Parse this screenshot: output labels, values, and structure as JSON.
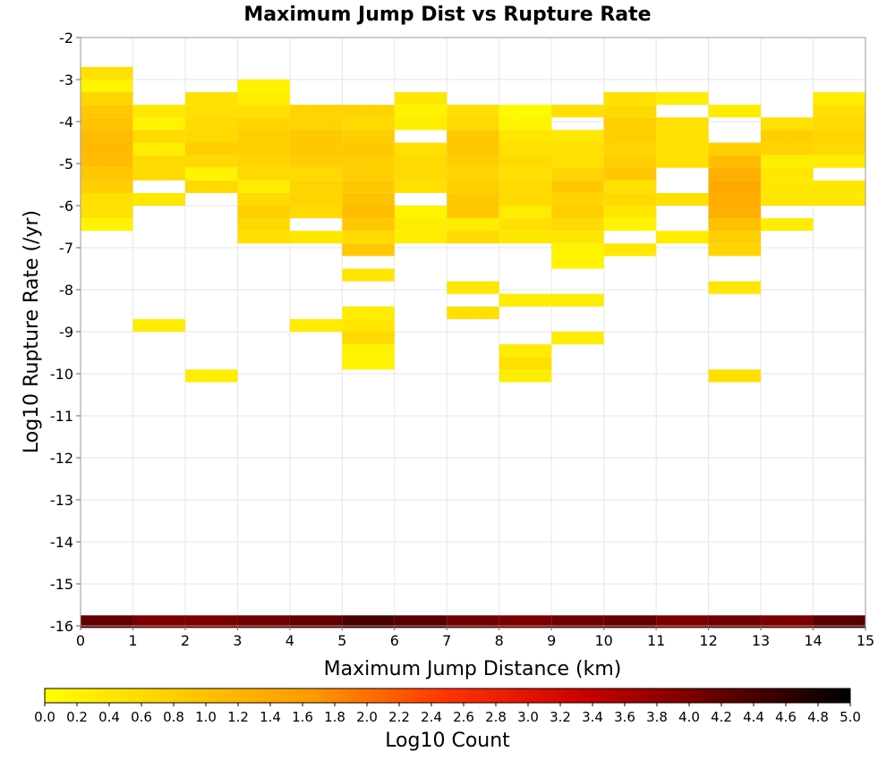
{
  "chart_data": {
    "type": "heatmap",
    "title": "Maximum Jump Dist vs Rupture Rate",
    "xlabel": "Maximum Jump Distance (km)",
    "ylabel": "Log10 Rupture Rate (/yr)",
    "xlim": [
      0,
      15
    ],
    "ylim": [
      -16,
      -2
    ],
    "x_ticks": [
      "0",
      "1",
      "2",
      "3",
      "4",
      "5",
      "6",
      "7",
      "8",
      "9",
      "10",
      "11",
      "12",
      "13",
      "14",
      "15"
    ],
    "y_ticks": [
      "-2",
      "-3",
      "-4",
      "-5",
      "-6",
      "-7",
      "-8",
      "-9",
      "-10",
      "-11",
      "-12",
      "-13",
      "-14",
      "-15",
      "-16"
    ],
    "grid": true,
    "x_bin_width": 1,
    "y_bin_height": 0.3,
    "colorbar": {
      "label": "Log10 Count",
      "range": [
        0,
        5
      ],
      "ticks": [
        "0.0",
        "0.2",
        "0.4",
        "0.6",
        "0.8",
        "1.0",
        "1.2",
        "1.4",
        "1.6",
        "1.8",
        "2.0",
        "2.2",
        "2.4",
        "2.6",
        "2.8",
        "3.0",
        "3.2",
        "3.4",
        "3.6",
        "3.8",
        "4.0",
        "4.2",
        "4.4",
        "4.6",
        "4.8",
        "5.0"
      ],
      "colors": [
        "#ffff00",
        "#ffcc00",
        "#ff9900",
        "#ff3300",
        "#cc0000",
        "#660000",
        "#000000"
      ]
    },
    "columns": [
      {
        "x": 0.5,
        "cells": [
          [
            -2.85,
            0.5
          ],
          [
            -3.15,
            0.2
          ],
          [
            -3.45,
            0.7
          ],
          [
            -3.75,
            0.9
          ],
          [
            -4.05,
            1.0
          ],
          [
            -4.35,
            1.1
          ],
          [
            -4.65,
            1.15
          ],
          [
            -4.95,
            1.1
          ],
          [
            -5.25,
            0.95
          ],
          [
            -5.55,
            0.8
          ],
          [
            -5.85,
            0.5
          ],
          [
            -6.15,
            0.5
          ],
          [
            -6.45,
            0.2
          ],
          [
            -15.9,
            4.2
          ]
        ]
      },
      {
        "x": 1.5,
        "cells": [
          [
            -3.75,
            0.4
          ],
          [
            -4.05,
            0.2
          ],
          [
            -4.35,
            0.6
          ],
          [
            -4.65,
            0.3
          ],
          [
            -4.95,
            0.6
          ],
          [
            -5.25,
            0.6
          ],
          [
            -5.85,
            0.4
          ],
          [
            -8.85,
            0.3
          ],
          [
            -15.9,
            4.0
          ]
        ]
      },
      {
        "x": 2.5,
        "cells": [
          [
            -3.45,
            0.5
          ],
          [
            -3.75,
            0.5
          ],
          [
            -4.05,
            0.6
          ],
          [
            -4.35,
            0.6
          ],
          [
            -4.65,
            0.8
          ],
          [
            -4.95,
            0.6
          ],
          [
            -5.25,
            0.2
          ],
          [
            -5.55,
            0.6
          ],
          [
            -10.05,
            0.3
          ],
          [
            -15.9,
            4.0
          ]
        ]
      },
      {
        "x": 3.5,
        "cells": [
          [
            -3.15,
            0.2
          ],
          [
            -3.45,
            0.3
          ],
          [
            -3.75,
            0.5
          ],
          [
            -4.05,
            0.7
          ],
          [
            -4.35,
            0.8
          ],
          [
            -4.65,
            0.8
          ],
          [
            -4.95,
            0.7
          ],
          [
            -5.25,
            0.6
          ],
          [
            -5.55,
            0.3
          ],
          [
            -5.85,
            0.6
          ],
          [
            -6.15,
            0.8
          ],
          [
            -6.45,
            0.6
          ],
          [
            -6.75,
            0.5
          ],
          [
            -15.9,
            4.1
          ]
        ]
      },
      {
        "x": 4.5,
        "cells": [
          [
            -3.75,
            0.7
          ],
          [
            -4.05,
            0.7
          ],
          [
            -4.35,
            0.9
          ],
          [
            -4.65,
            0.9
          ],
          [
            -4.95,
            0.8
          ],
          [
            -5.25,
            0.6
          ],
          [
            -5.55,
            0.7
          ],
          [
            -5.85,
            0.7
          ],
          [
            -6.15,
            0.6
          ],
          [
            -6.75,
            0.4
          ],
          [
            -8.85,
            0.3
          ],
          [
            -15.9,
            4.2
          ]
        ]
      },
      {
        "x": 5.5,
        "cells": [
          [
            -3.75,
            0.7
          ],
          [
            -4.05,
            0.6
          ],
          [
            -4.35,
            0.8
          ],
          [
            -4.65,
            0.9
          ],
          [
            -4.95,
            0.8
          ],
          [
            -5.25,
            0.8
          ],
          [
            -5.55,
            0.9
          ],
          [
            -5.85,
            1.0
          ],
          [
            -6.15,
            1.1
          ],
          [
            -6.45,
            0.9
          ],
          [
            -6.75,
            0.6
          ],
          [
            -7.05,
            0.9
          ],
          [
            -7.65,
            0.4
          ],
          [
            -8.55,
            0.3
          ],
          [
            -8.85,
            0.4
          ],
          [
            -9.15,
            0.6
          ],
          [
            -9.45,
            0.2
          ],
          [
            -9.75,
            0.2
          ],
          [
            -15.9,
            4.4
          ]
        ]
      },
      {
        "x": 6.5,
        "cells": [
          [
            -3.45,
            0.4
          ],
          [
            -3.75,
            0.2
          ],
          [
            -4.05,
            0.3
          ],
          [
            -4.65,
            0.5
          ],
          [
            -4.95,
            0.6
          ],
          [
            -5.25,
            0.6
          ],
          [
            -5.55,
            0.5
          ],
          [
            -6.15,
            0.2
          ],
          [
            -6.45,
            0.3
          ],
          [
            -6.75,
            0.3
          ],
          [
            -15.9,
            4.3
          ]
        ]
      },
      {
        "x": 7.5,
        "cells": [
          [
            -3.75,
            0.5
          ],
          [
            -4.05,
            0.6
          ],
          [
            -4.35,
            0.9
          ],
          [
            -4.65,
            0.9
          ],
          [
            -4.95,
            0.8
          ],
          [
            -5.25,
            0.7
          ],
          [
            -5.55,
            0.8
          ],
          [
            -5.85,
            0.9
          ],
          [
            -6.15,
            0.9
          ],
          [
            -6.45,
            0.3
          ],
          [
            -6.75,
            0.6
          ],
          [
            -7.95,
            0.4
          ],
          [
            -8.55,
            0.5
          ],
          [
            -15.9,
            4.1
          ]
        ]
      },
      {
        "x": 8.5,
        "cells": [
          [
            -3.75,
            0.1
          ],
          [
            -4.05,
            0.2
          ],
          [
            -4.35,
            0.4
          ],
          [
            -4.65,
            0.5
          ],
          [
            -4.95,
            0.6
          ],
          [
            -5.25,
            0.5
          ],
          [
            -5.55,
            0.6
          ],
          [
            -5.85,
            0.6
          ],
          [
            -6.15,
            0.3
          ],
          [
            -6.45,
            0.5
          ],
          [
            -6.75,
            0.4
          ],
          [
            -8.25,
            0.3
          ],
          [
            -9.45,
            0.3
          ],
          [
            -9.75,
            0.5
          ],
          [
            -10.05,
            0.3
          ],
          [
            -15.9,
            4.0
          ]
        ]
      },
      {
        "x": 9.5,
        "cells": [
          [
            -3.75,
            0.5
          ],
          [
            -4.35,
            0.4
          ],
          [
            -4.65,
            0.5
          ],
          [
            -4.95,
            0.5
          ],
          [
            -5.25,
            0.7
          ],
          [
            -5.55,
            0.9
          ],
          [
            -5.85,
            0.7
          ],
          [
            -6.15,
            0.8
          ],
          [
            -6.45,
            0.6
          ],
          [
            -6.75,
            0.4
          ],
          [
            -7.05,
            0.2
          ],
          [
            -7.35,
            0.2
          ],
          [
            -8.25,
            0.3
          ],
          [
            -9.15,
            0.3
          ],
          [
            -15.9,
            4.1
          ]
        ]
      },
      {
        "x": 10.5,
        "cells": [
          [
            -3.45,
            0.5
          ],
          [
            -3.75,
            0.6
          ],
          [
            -4.05,
            0.8
          ],
          [
            -4.35,
            0.8
          ],
          [
            -4.65,
            0.7
          ],
          [
            -4.95,
            0.8
          ],
          [
            -5.25,
            0.9
          ],
          [
            -5.55,
            0.5
          ],
          [
            -5.85,
            0.6
          ],
          [
            -6.15,
            0.4
          ],
          [
            -6.45,
            0.2
          ],
          [
            -7.05,
            0.4
          ],
          [
            -15.9,
            4.2
          ]
        ]
      },
      {
        "x": 11.5,
        "cells": [
          [
            -3.45,
            0.3
          ],
          [
            -4.05,
            0.5
          ],
          [
            -4.35,
            0.5
          ],
          [
            -4.65,
            0.5
          ],
          [
            -4.95,
            0.5
          ],
          [
            -5.85,
            0.5
          ],
          [
            -6.75,
            0.3
          ],
          [
            -15.9,
            4.0
          ]
        ]
      },
      {
        "x": 12.5,
        "cells": [
          [
            -3.75,
            0.3
          ],
          [
            -4.65,
            0.8
          ],
          [
            -4.95,
            1.1
          ],
          [
            -5.25,
            1.3
          ],
          [
            -5.55,
            1.4
          ],
          [
            -5.85,
            1.35
          ],
          [
            -6.15,
            1.3
          ],
          [
            -6.45,
            1.0
          ],
          [
            -6.75,
            0.8
          ],
          [
            -7.05,
            0.7
          ],
          [
            -7.95,
            0.4
          ],
          [
            -10.05,
            0.5
          ],
          [
            -15.9,
            4.1
          ]
        ]
      },
      {
        "x": 13.5,
        "cells": [
          [
            -4.05,
            0.5
          ],
          [
            -4.35,
            0.8
          ],
          [
            -4.65,
            0.7
          ],
          [
            -4.95,
            0.3
          ],
          [
            -5.25,
            0.4
          ],
          [
            -5.55,
            0.4
          ],
          [
            -5.85,
            0.4
          ],
          [
            -6.45,
            0.3
          ],
          [
            -15.9,
            4.0
          ]
        ]
      },
      {
        "x": 14.5,
        "cells": [
          [
            -3.45,
            0.3
          ],
          [
            -3.75,
            0.5
          ],
          [
            -4.05,
            0.6
          ],
          [
            -4.35,
            0.7
          ],
          [
            -4.65,
            0.6
          ],
          [
            -4.95,
            0.3
          ],
          [
            -5.55,
            0.4
          ],
          [
            -5.85,
            0.4
          ],
          [
            -15.9,
            4.3
          ]
        ]
      }
    ]
  }
}
